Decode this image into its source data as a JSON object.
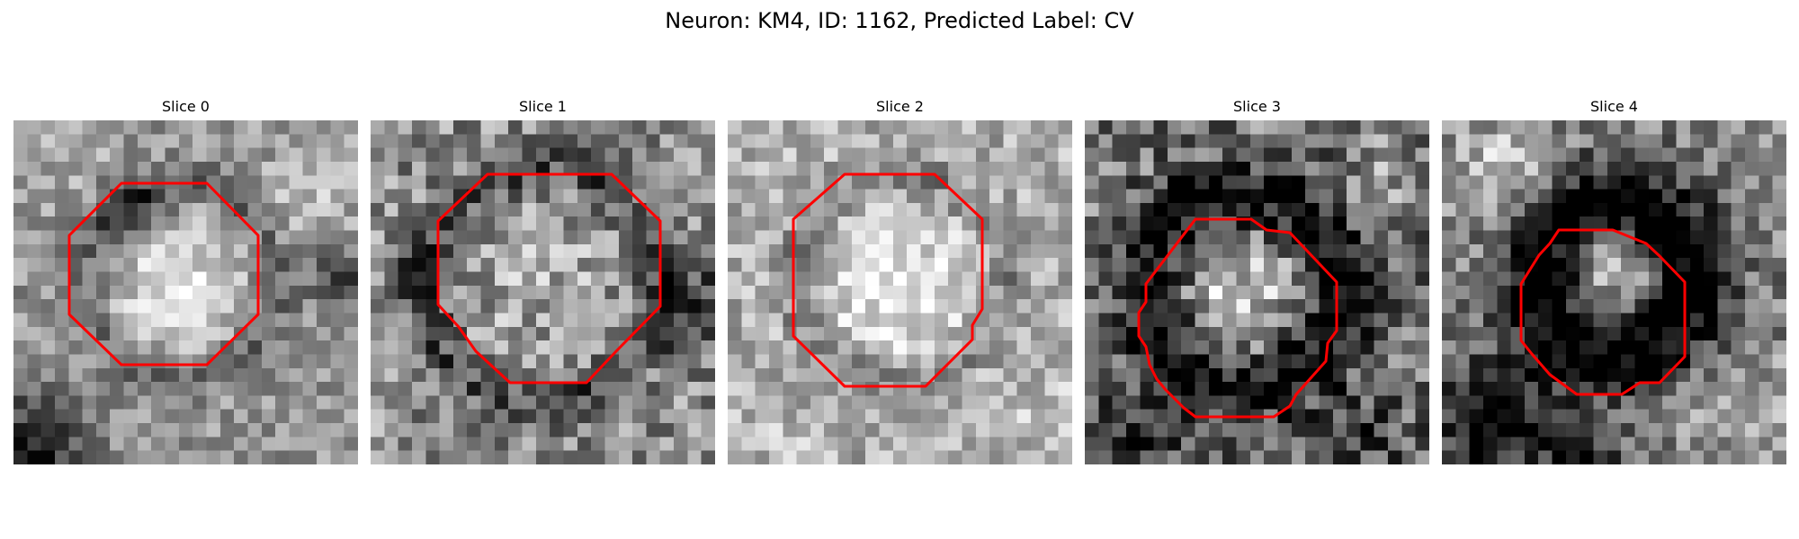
{
  "figure": {
    "title": "Neuron: KM4, ID: 1162, Predicted Label: CV"
  },
  "panels": [
    {
      "title": "Slice 0",
      "mask_color": "#ff0000"
    },
    {
      "title": "Slice 1",
      "mask_color": "#ff0000"
    },
    {
      "title": "Slice 2",
      "mask_color": "#ff0000"
    },
    {
      "title": "Slice 3",
      "mask_color": "#ff0000"
    },
    {
      "title": "Slice 4",
      "mask_color": "#ff0000"
    }
  ],
  "colormap": "gray"
}
